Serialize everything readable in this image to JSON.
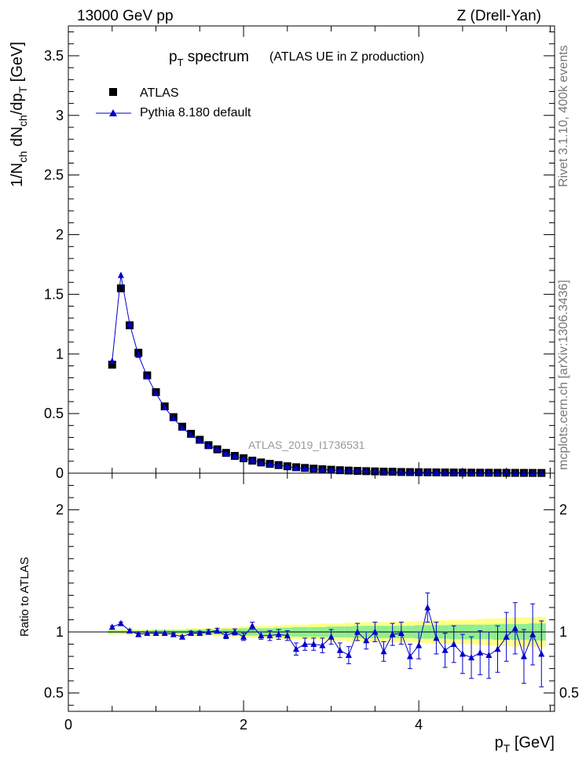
{
  "header": {
    "left": "13000 GeV pp",
    "right": "Z (Drell-Yan)"
  },
  "side_labels": {
    "rivet": "Rivet 3.1.10,  400k events",
    "mcplots": "mcplots.cern.ch [arXiv:1306.3436]"
  },
  "chart_data": {
    "type": "scatter",
    "title_main": "p",
    "title_sub": "T",
    "title_rest": " spectrum",
    "title_note": "(ATLAS UE in Z production)",
    "analysis_id": "ATLAS_2019_I1736531",
    "ylabel": "1/N_ch dN_ch/dp_T [GeV]",
    "xlabel": "p_T [GeV]",
    "ratio_ylabel": "Ratio to ATLAS",
    "xlim": [
      0,
      5.55
    ],
    "ylim": [
      0,
      3.75
    ],
    "ratio_ylim": [
      0.35,
      2.3
    ],
    "x_ticks": [
      "0",
      "2",
      "4"
    ],
    "y_ticks": [
      "0",
      "0.5",
      "1",
      "1.5",
      "2",
      "2.5",
      "3",
      "3.5"
    ],
    "ratio_ticks": [
      "0.5",
      "1",
      "2"
    ],
    "legend": {
      "data": "ATLAS",
      "mc": "Pythia 8.180 default"
    },
    "colors": {
      "data": "#000000",
      "mc": "#0000cc",
      "band_inner": "#90ee90",
      "band_outer": "#ffff88"
    },
    "x": [
      0.5,
      0.6,
      0.7,
      0.8,
      0.9,
      1.0,
      1.1,
      1.2,
      1.3,
      1.4,
      1.5,
      1.6,
      1.7,
      1.8,
      1.9,
      2.0,
      2.1,
      2.2,
      2.3,
      2.4,
      2.5,
      2.6,
      2.7,
      2.8,
      2.9,
      3.0,
      3.1,
      3.2,
      3.3,
      3.4,
      3.5,
      3.6,
      3.7,
      3.8,
      3.9,
      4.0,
      4.1,
      4.2,
      4.3,
      4.4,
      4.5,
      4.6,
      4.7,
      4.8,
      4.9,
      5.0,
      5.1,
      5.2,
      5.3,
      5.4
    ],
    "series": [
      {
        "name": "ATLAS",
        "values": [
          0.91,
          1.55,
          1.24,
          1.01,
          0.82,
          0.68,
          0.56,
          0.47,
          0.39,
          0.33,
          0.28,
          0.235,
          0.2,
          0.17,
          0.145,
          0.125,
          0.105,
          0.09,
          0.078,
          0.068,
          0.058,
          0.05,
          0.044,
          0.038,
          0.033,
          0.029,
          0.025,
          0.022,
          0.019,
          0.017,
          0.015,
          0.013,
          0.012,
          0.01,
          0.009,
          0.008,
          0.007,
          0.0065,
          0.006,
          0.0055,
          0.005,
          0.0045,
          0.004,
          0.0037,
          0.0033,
          0.003,
          0.0027,
          0.0025,
          0.0022,
          0.002
        ]
      },
      {
        "name": "Pythia 8.180 default",
        "values": [
          0.94,
          1.66,
          1.25,
          0.99,
          0.81,
          0.67,
          0.55,
          0.46,
          0.38,
          0.32,
          0.275,
          0.23,
          0.2,
          0.165,
          0.143,
          0.12,
          0.11,
          0.087,
          0.075,
          0.066,
          0.056,
          0.043,
          0.04,
          0.034,
          0.03,
          0.028,
          0.021,
          0.018,
          0.019,
          0.016,
          0.015,
          0.011,
          0.012,
          0.01,
          0.0072,
          0.007,
          0.0085,
          0.0062,
          0.0051,
          0.005,
          0.0041,
          0.0036,
          0.0033,
          0.003,
          0.0028,
          0.0029,
          0.0028,
          0.002,
          0.0019,
          0.0017
        ]
      }
    ],
    "ratio": [
      1.04,
      1.07,
      1.01,
      0.98,
      0.99,
      0.99,
      0.99,
      0.98,
      0.96,
      0.99,
      0.99,
      1.0,
      1.01,
      0.97,
      1.0,
      0.96,
      1.05,
      0.97,
      0.97,
      0.98,
      0.97,
      0.86,
      0.9,
      0.9,
      0.89,
      0.96,
      0.85,
      0.81,
      1.0,
      0.93,
      1.0,
      0.84,
      0.98,
      0.99,
      0.8,
      0.89,
      1.2,
      0.95,
      0.85,
      0.9,
      0.82,
      0.79,
      0.83,
      0.81,
      0.86,
      0.96,
      1.03,
      0.8,
      0.98,
      0.82
    ],
    "ratio_err": [
      0.01,
      0.01,
      0.01,
      0.01,
      0.01,
      0.01,
      0.01,
      0.01,
      0.01,
      0.015,
      0.015,
      0.02,
      0.02,
      0.025,
      0.025,
      0.03,
      0.03,
      0.03,
      0.04,
      0.04,
      0.04,
      0.05,
      0.05,
      0.05,
      0.06,
      0.06,
      0.06,
      0.07,
      0.07,
      0.07,
      0.08,
      0.08,
      0.09,
      0.09,
      0.1,
      0.11,
      0.12,
      0.13,
      0.14,
      0.15,
      0.16,
      0.17,
      0.18,
      0.19,
      0.19,
      0.2,
      0.21,
      0.22,
      0.25,
      0.27
    ],
    "band_inner": [
      0.01,
      0.01,
      0.01,
      0.01,
      0.01,
      0.015,
      0.015,
      0.015,
      0.015,
      0.02,
      0.02,
      0.02,
      0.02,
      0.025,
      0.025,
      0.03,
      0.03,
      0.03,
      0.03,
      0.035,
      0.035,
      0.04,
      0.04,
      0.04,
      0.04,
      0.045,
      0.045,
      0.045,
      0.05,
      0.05,
      0.05,
      0.05,
      0.05,
      0.05,
      0.05,
      0.055,
      0.055,
      0.055,
      0.055,
      0.06,
      0.06,
      0.06,
      0.06,
      0.06,
      0.065,
      0.065,
      0.065,
      0.065,
      0.07,
      0.07
    ],
    "band_outer": [
      0.02,
      0.02,
      0.02,
      0.02,
      0.02,
      0.025,
      0.025,
      0.025,
      0.025,
      0.03,
      0.03,
      0.03,
      0.035,
      0.04,
      0.04,
      0.045,
      0.05,
      0.05,
      0.05,
      0.055,
      0.06,
      0.06,
      0.06,
      0.065,
      0.07,
      0.07,
      0.07,
      0.075,
      0.08,
      0.08,
      0.08,
      0.08,
      0.085,
      0.085,
      0.085,
      0.09,
      0.09,
      0.095,
      0.095,
      0.1,
      0.1,
      0.1,
      0.105,
      0.11,
      0.11,
      0.115,
      0.12,
      0.12,
      0.12,
      0.125
    ]
  }
}
